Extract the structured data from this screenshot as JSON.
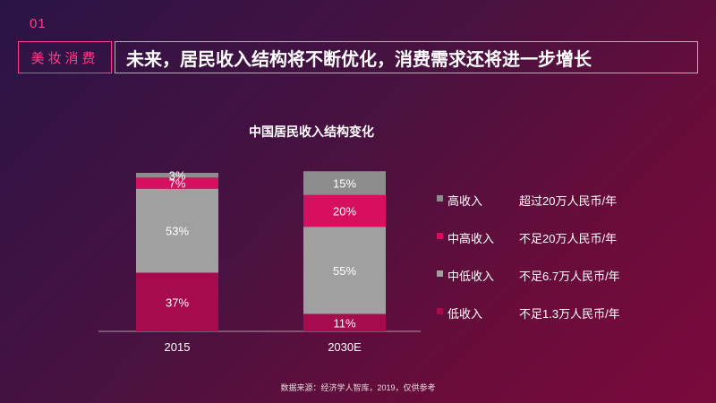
{
  "header": {
    "section_number": "01",
    "section_tag": "美妆消费",
    "headline": "未来，居民收入结构将不断优化，消费需求还将进一步增长"
  },
  "source_note": "数据来源：经济学人智库，2019，仅供参考",
  "legend": [
    {
      "name": "高收入",
      "desc": "超过20万人民币/年",
      "color": "#8c8c8c"
    },
    {
      "name": "中高收入",
      "desc": "不足20万人民币/年",
      "color": "#d6105f"
    },
    {
      "name": "中低收入",
      "desc": "不足6.7万人民币/年",
      "color": "#a0a0a0"
    },
    {
      "name": "低收入",
      "desc": "不足1.3万人民币/年",
      "color": "#a50b4d"
    }
  ],
  "chart_data": {
    "type": "bar",
    "stacked": true,
    "title": "中国居民收入结构变化",
    "categories": [
      "2015",
      "2030E"
    ],
    "series": [
      {
        "name": "低收入",
        "values": [
          37,
          11
        ],
        "labels": [
          "37%",
          "11%"
        ],
        "color": "#a50b4d"
      },
      {
        "name": "中低收入",
        "values": [
          53,
          55
        ],
        "labels": [
          "53%",
          "55%"
        ],
        "color": "#a0a0a0"
      },
      {
        "name": "中高收入",
        "values": [
          7,
          20
        ],
        "labels": [
          "7%",
          "20%"
        ],
        "color": "#d6105f"
      },
      {
        "name": "高收入",
        "values": [
          3,
          15
        ],
        "labels": [
          "3%",
          "15%"
        ],
        "color": "#8c8c8c"
      }
    ],
    "ylim": [
      0,
      100
    ],
    "grid": false,
    "legend_position": "right"
  }
}
